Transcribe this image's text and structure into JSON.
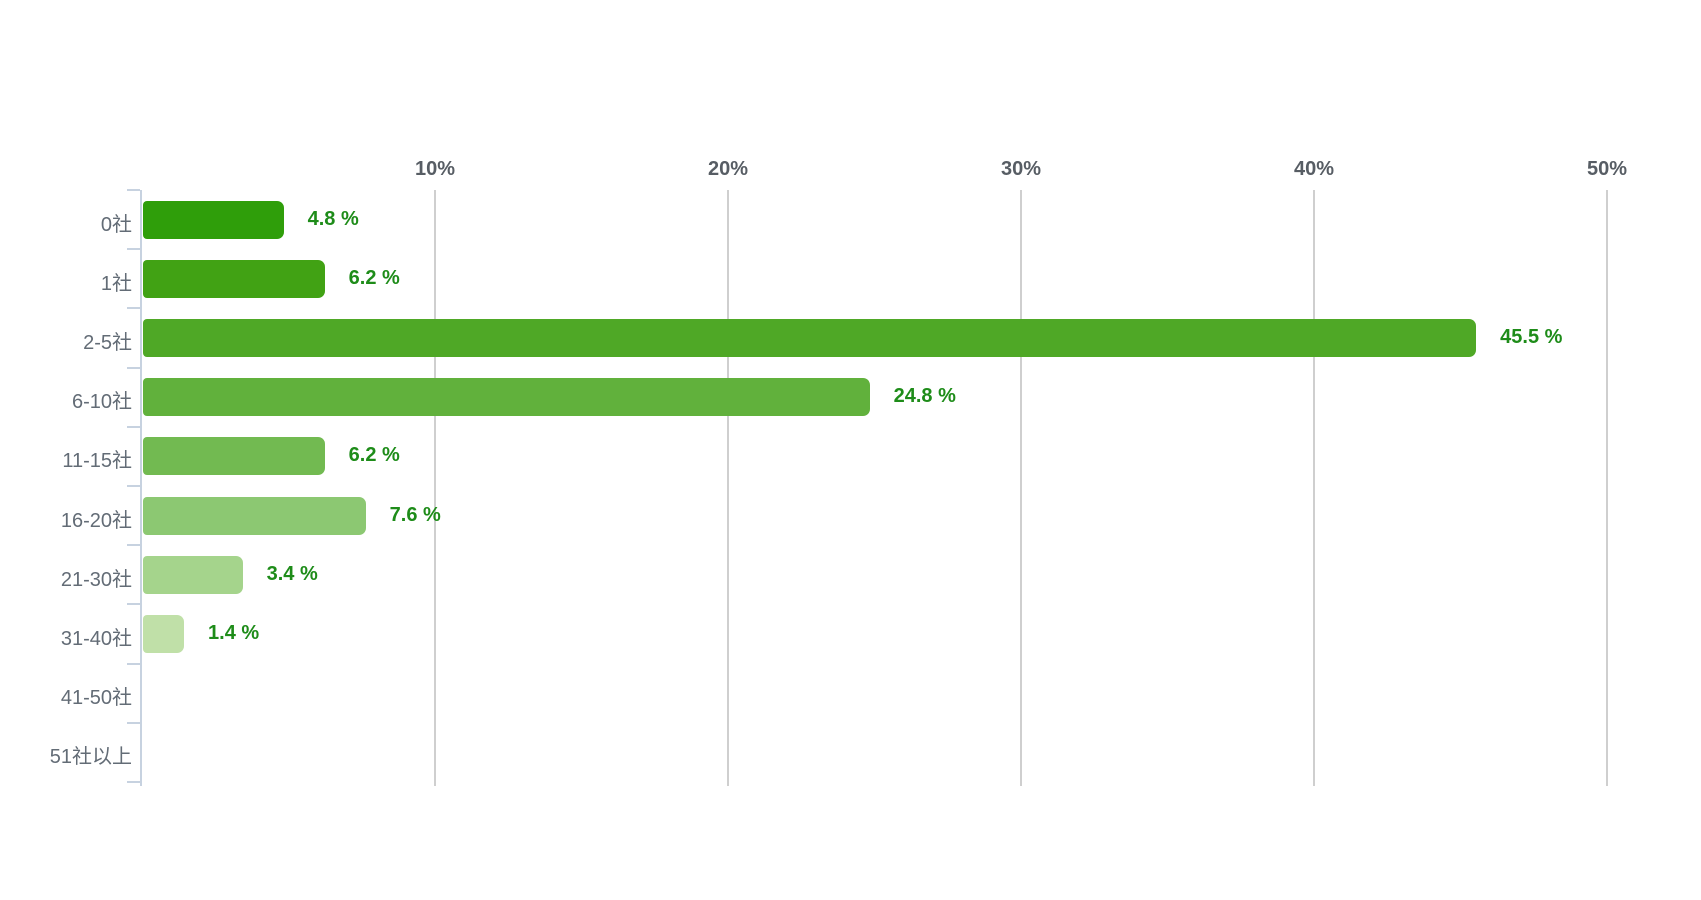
{
  "chart_data": {
    "type": "bar",
    "orientation": "horizontal",
    "title": "",
    "categories": [
      "0社",
      "1社",
      "2-5社",
      "6-10社",
      "11-15社",
      "16-20社",
      "21-30社",
      "31-40社",
      "41-50社",
      "51社以上"
    ],
    "values": [
      4.8,
      6.2,
      45.5,
      24.8,
      6.2,
      7.6,
      3.4,
      1.4,
      0,
      0
    ],
    "value_labels": [
      "4.8 %",
      "6.2 %",
      "45.5 %",
      "24.8 %",
      "6.2 %",
      "7.6 %",
      "3.4 %",
      "1.4 %",
      "",
      ""
    ],
    "x_axis": {
      "position": "top",
      "ticks": [
        "10%",
        "20%",
        "30%",
        "40%",
        "50%"
      ],
      "tick_values": [
        10,
        20,
        30,
        40,
        50
      ],
      "min": 0,
      "max": 50
    },
    "grid": true,
    "legend": false,
    "bar_colors": [
      "#2f9e0a",
      "#41a214",
      "#4fa826",
      "#61b13c",
      "#72ba51",
      "#8cc872",
      "#a5d48c",
      "#c0e0a8",
      null,
      null
    ],
    "colors": {
      "value_label": "#1e8c19",
      "category_label": "#636c76",
      "tick_label": "#575d64",
      "gridline": "#cfcfcf",
      "axis": "#c7d2e0",
      "background": "#ffffff"
    }
  }
}
